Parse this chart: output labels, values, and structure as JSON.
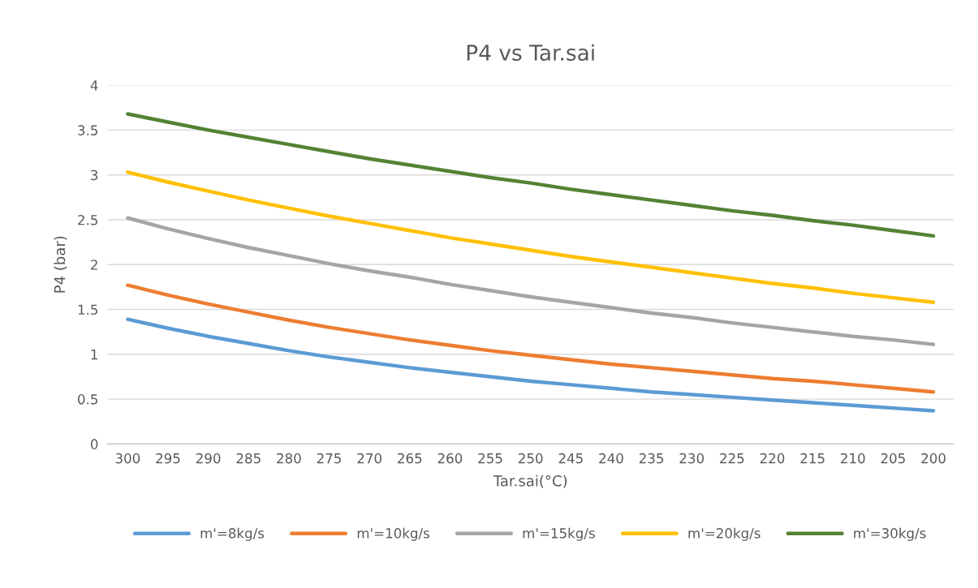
{
  "chart_data": {
    "type": "line",
    "title": "P4 vs Tar.sai",
    "xlabel": "Tar.sai(°C)",
    "ylabel": "P4 (bar)",
    "categories": [
      "300",
      "295",
      "290",
      "285",
      "280",
      "275",
      "270",
      "265",
      "260",
      "255",
      "250",
      "245",
      "240",
      "235",
      "230",
      "225",
      "220",
      "215",
      "210",
      "205",
      "200"
    ],
    "series": [
      {
        "name": "m'=8kg/s",
        "color": "#5b9bd5",
        "values": [
          1.39,
          1.29,
          1.2,
          1.12,
          1.04,
          0.97,
          0.91,
          0.85,
          0.8,
          0.75,
          0.7,
          0.66,
          0.62,
          0.58,
          0.55,
          0.52,
          0.49,
          0.46,
          0.43,
          0.4,
          0.37
        ]
      },
      {
        "name": "m'=10kg/s",
        "color": "#ed7d31",
        "values": [
          1.77,
          1.66,
          1.56,
          1.47,
          1.38,
          1.3,
          1.23,
          1.16,
          1.1,
          1.04,
          0.99,
          0.94,
          0.89,
          0.85,
          0.81,
          0.77,
          0.73,
          0.7,
          0.66,
          0.62,
          0.58
        ]
      },
      {
        "name": "m'=15kg/s",
        "color": "#a5a5a5",
        "values": [
          2.52,
          2.4,
          2.29,
          2.19,
          2.1,
          2.01,
          1.93,
          1.86,
          1.78,
          1.71,
          1.64,
          1.58,
          1.52,
          1.46,
          1.41,
          1.35,
          1.3,
          1.25,
          1.2,
          1.16,
          1.11
        ]
      },
      {
        "name": "m'=20kg/s",
        "color": "#ffc000",
        "values": [
          3.03,
          2.92,
          2.82,
          2.72,
          2.63,
          2.54,
          2.46,
          2.38,
          2.3,
          2.23,
          2.16,
          2.09,
          2.03,
          1.97,
          1.91,
          1.85,
          1.79,
          1.74,
          1.68,
          1.63,
          1.58
        ]
      },
      {
        "name": "m'=30kg/s",
        "color": "#548235",
        "values": [
          3.68,
          3.59,
          3.5,
          3.42,
          3.34,
          3.26,
          3.18,
          3.11,
          3.04,
          2.97,
          2.91,
          2.84,
          2.78,
          2.72,
          2.66,
          2.6,
          2.55,
          2.49,
          2.44,
          2.38,
          2.32
        ]
      }
    ],
    "ylim": [
      0,
      4
    ],
    "yticks": [
      0,
      0.5,
      1,
      1.5,
      2,
      2.5,
      3,
      3.5,
      4
    ],
    "grid": "y",
    "legend": "bottom",
    "marker": "none",
    "line_style": "solid"
  }
}
